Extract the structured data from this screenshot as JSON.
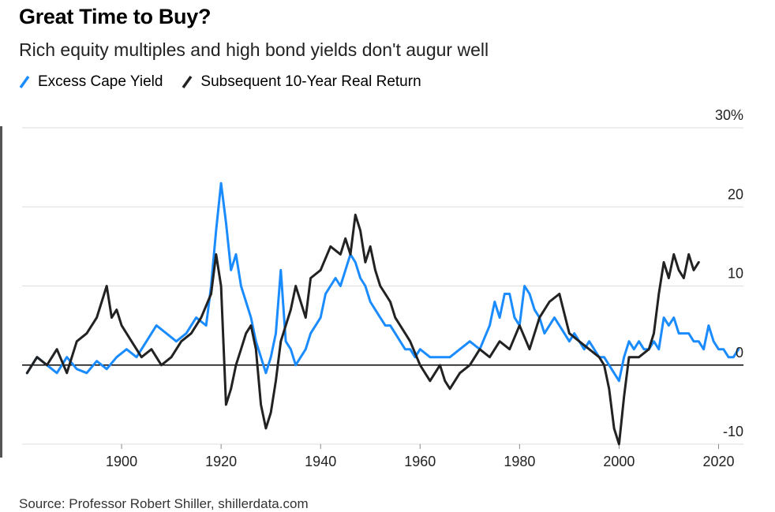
{
  "title": "Great Time to Buy?",
  "subtitle": "Rich equity multiples and high bond yields don't augur well",
  "source": "Source: Professor Robert Shiller, shillerdata.com",
  "colors": {
    "series_blue": "#1a8cff",
    "series_black": "#222222",
    "grid": "#dddddd",
    "zero": "#000000"
  },
  "chart_data": {
    "type": "line",
    "title": "Great Time to Buy?",
    "subtitle": "Rich equity multiples and high bond yields don't augur well",
    "xlim": [
      1880,
      2025
    ],
    "ylim": [
      -10,
      30
    ],
    "x_ticks": [
      1900,
      1920,
      1940,
      1960,
      1980,
      2000,
      2020
    ],
    "x_tick_labels": [
      "1900",
      "1920",
      "1940",
      "1960",
      "1980",
      "2000",
      "2020"
    ],
    "y_ticks": [
      -10,
      0,
      10,
      20,
      30
    ],
    "y_tick_labels": [
      "-10",
      "0",
      "10",
      "20",
      "30%"
    ],
    "grid": true,
    "legend_position": "top-left",
    "series": [
      {
        "name": "Excess Cape Yield",
        "color": "#1a8cff",
        "x": [
          1881,
          1883,
          1885,
          1887,
          1889,
          1891,
          1893,
          1895,
          1897,
          1899,
          1901,
          1903,
          1905,
          1907,
          1909,
          1911,
          1913,
          1915,
          1917,
          1918,
          1919,
          1920,
          1921,
          1922,
          1923,
          1924,
          1925,
          1926,
          1927,
          1928,
          1929,
          1930,
          1931,
          1932,
          1933,
          1934,
          1935,
          1936,
          1937,
          1938,
          1939,
          1940,
          1941,
          1942,
          1943,
          1944,
          1945,
          1946,
          1947,
          1948,
          1949,
          1950,
          1951,
          1952,
          1953,
          1954,
          1955,
          1956,
          1957,
          1958,
          1959,
          1960,
          1962,
          1964,
          1966,
          1968,
          1970,
          1972,
          1974,
          1975,
          1976,
          1977,
          1978,
          1979,
          1980,
          1981,
          1982,
          1983,
          1984,
          1985,
          1986,
          1987,
          1988,
          1989,
          1990,
          1991,
          1992,
          1993,
          1994,
          1995,
          1996,
          1997,
          1998,
          1999,
          2000,
          2001,
          2002,
          2003,
          2004,
          2005,
          2006,
          2007,
          2008,
          2009,
          2010,
          2011,
          2012,
          2013,
          2014,
          2015,
          2016,
          2017,
          2018,
          2019,
          2020,
          2021,
          2022,
          2023,
          2024
        ],
        "values": [
          -1,
          1,
          0,
          -1,
          1,
          -0.5,
          -1,
          0.5,
          -0.5,
          1,
          2,
          1,
          3,
          5,
          4,
          3,
          4,
          6,
          5,
          10,
          17,
          23,
          18,
          12,
          14,
          10,
          8,
          6,
          3,
          1,
          -1,
          1,
          4,
          12,
          3,
          2,
          0,
          1,
          2,
          4,
          5,
          6,
          9,
          10,
          11,
          10,
          12,
          14,
          13,
          11,
          10,
          8,
          7,
          6,
          5,
          5,
          4,
          3,
          2,
          2,
          1,
          2,
          1,
          1,
          1,
          2,
          3,
          2,
          5,
          8,
          6,
          9,
          9,
          6,
          5,
          10,
          9,
          7,
          6,
          4,
          5,
          6,
          5,
          4,
          3,
          4,
          3,
          2,
          3,
          2,
          1,
          1,
          0,
          -1,
          -2,
          1,
          3,
          2,
          3,
          2,
          2,
          3,
          2,
          6,
          5,
          6,
          4,
          4,
          4,
          3,
          3,
          2,
          5,
          3,
          2,
          2,
          1,
          1,
          2
        ]
      },
      {
        "name": "Subsequent 10-Year Real Return",
        "color": "#222222",
        "x": [
          1881,
          1883,
          1885,
          1887,
          1889,
          1891,
          1893,
          1895,
          1896,
          1897,
          1898,
          1899,
          1900,
          1902,
          1904,
          1906,
          1908,
          1910,
          1912,
          1914,
          1916,
          1918,
          1919,
          1920,
          1921,
          1922,
          1923,
          1924,
          1925,
          1926,
          1927,
          1928,
          1929,
          1930,
          1931,
          1932,
          1933,
          1934,
          1935,
          1936,
          1937,
          1938,
          1940,
          1942,
          1944,
          1945,
          1946,
          1947,
          1948,
          1949,
          1950,
          1951,
          1952,
          1953,
          1954,
          1955,
          1956,
          1957,
          1958,
          1960,
          1962,
          1964,
          1965,
          1966,
          1968,
          1970,
          1972,
          1974,
          1976,
          1978,
          1980,
          1982,
          1984,
          1986,
          1988,
          1990,
          1992,
          1994,
          1996,
          1997,
          1998,
          1999,
          2000,
          2001,
          2002,
          2004,
          2006,
          2007,
          2008,
          2009,
          2010,
          2011,
          2012,
          2013,
          2014,
          2015,
          2016
        ],
        "values": [
          -1,
          1,
          0,
          2,
          -1,
          3,
          4,
          6,
          8,
          10,
          6,
          7,
          5,
          3,
          1,
          2,
          0,
          1,
          3,
          4,
          6,
          9,
          14,
          10,
          -5,
          -3,
          0,
          2,
          4,
          5,
          2,
          -5,
          -8,
          -6,
          -2,
          3,
          5,
          7,
          10,
          8,
          6,
          11,
          12,
          15,
          14,
          16,
          14,
          19,
          17,
          13,
          15,
          12,
          10,
          9,
          8,
          6,
          5,
          4,
          3,
          0,
          -2,
          0,
          -2,
          -3,
          -1,
          0,
          2,
          1,
          3,
          2,
          5,
          2,
          6,
          8,
          9,
          4,
          3,
          2,
          1,
          0,
          -3,
          -8,
          -10,
          -4,
          1,
          1,
          2,
          4,
          9,
          13,
          11,
          14,
          12,
          11,
          14,
          12,
          13
        ]
      }
    ]
  }
}
